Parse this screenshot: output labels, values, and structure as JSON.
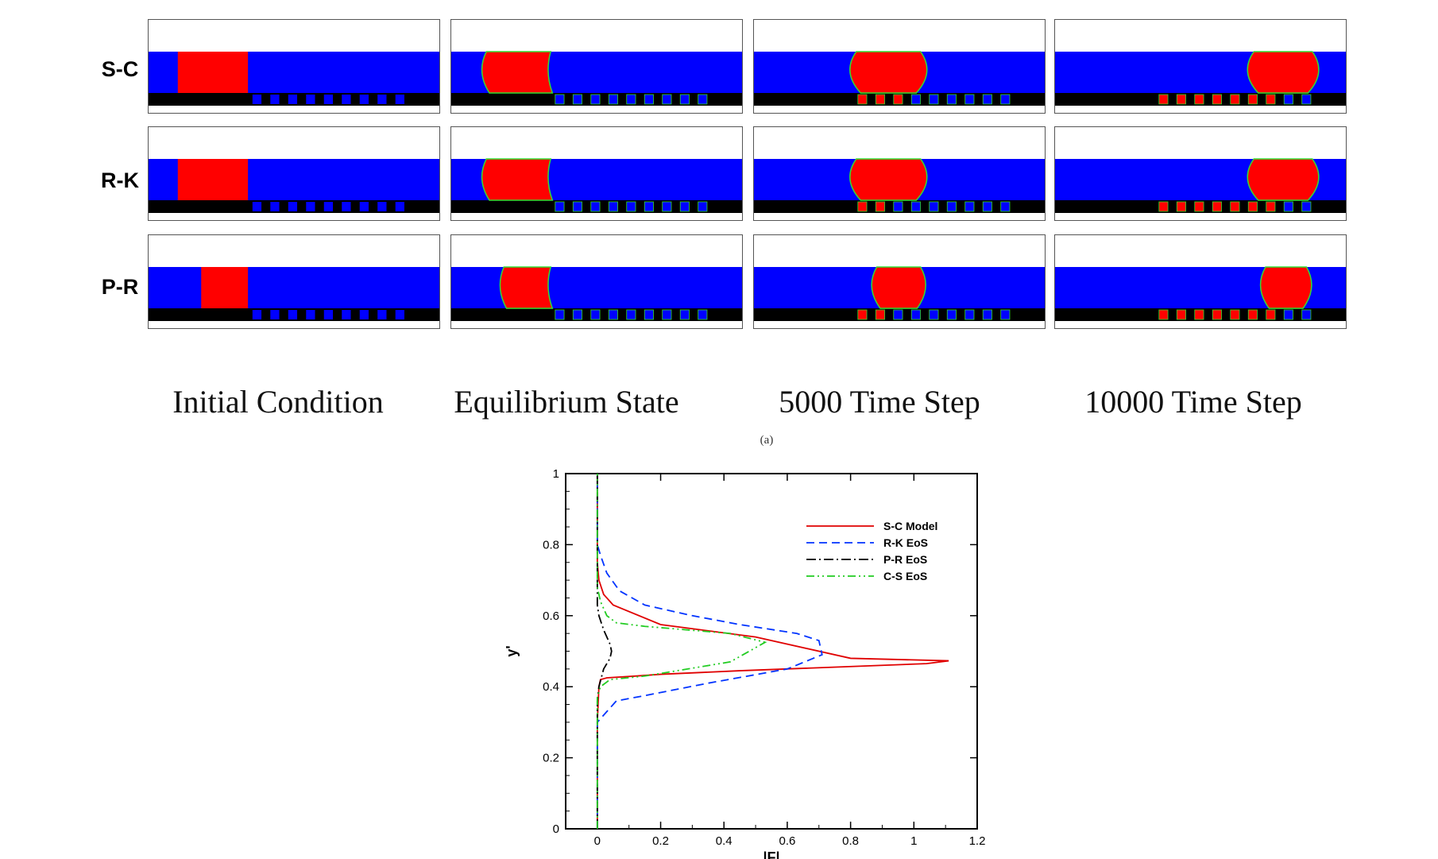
{
  "rows": [
    {
      "label": "S-C"
    },
    {
      "label": "R-K"
    },
    {
      "label": "P-R"
    }
  ],
  "columns": [
    {
      "label": "Initial Condition"
    },
    {
      "label": "Equilibrium State"
    },
    {
      "label": "5000 Time Step"
    },
    {
      "label": "10000 Time Step"
    }
  ],
  "subfigure_label": "(a)",
  "colors": {
    "liquid": "#ff0000",
    "vapor": "#0000ff",
    "wall": "#000000",
    "interface": "#33dd33",
    "sc": "#e00000",
    "rk": "#0033ff",
    "pr": "#000000",
    "cs": "#22cc22"
  },
  "chart_data": {
    "type": "line",
    "xlabel": "|F|",
    "ylabel": "y'",
    "xlim": [
      -0.1,
      1.2
    ],
    "ylim": [
      0,
      1
    ],
    "xticks": [
      0,
      0.2,
      0.4,
      0.6,
      0.8,
      1,
      1.2
    ],
    "yticks": [
      0,
      0.2,
      0.4,
      0.6,
      0.8,
      1
    ],
    "legend_position": "top-right",
    "series": [
      {
        "name": "S-C Model",
        "style": "solid",
        "color": "#e00000",
        "x": [
          0,
          0,
          0.005,
          0.01,
          0.03,
          0.12,
          0.2,
          0.45,
          1.04,
          1.11,
          0.8,
          0.5,
          0.2,
          0.05,
          0.02,
          0.005,
          0,
          0
        ],
        "y": [
          0,
          0.3,
          0.4,
          0.42,
          0.425,
          0.43,
          0.435,
          0.445,
          0.465,
          0.473,
          0.48,
          0.54,
          0.575,
          0.63,
          0.66,
          0.7,
          0.75,
          1
        ]
      },
      {
        "name": "R-K EoS",
        "style": "dashed",
        "color": "#0033ff",
        "x": [
          0,
          0,
          0.01,
          0.03,
          0.06,
          0.15,
          0.35,
          0.6,
          0.71,
          0.7,
          0.63,
          0.45,
          0.3,
          0.15,
          0.07,
          0.03,
          0.01,
          0,
          0
        ],
        "y": [
          0,
          0.3,
          0.31,
          0.33,
          0.36,
          0.375,
          0.41,
          0.45,
          0.49,
          0.53,
          0.55,
          0.575,
          0.6,
          0.63,
          0.67,
          0.72,
          0.77,
          0.8,
          1
        ]
      },
      {
        "name": "P-R EoS",
        "style": "dashdot",
        "color": "#000000",
        "x": [
          0,
          0,
          0.005,
          0.02,
          0.04,
          0.045,
          0.04,
          0.02,
          0.005,
          0,
          0
        ],
        "y": [
          0,
          0.36,
          0.4,
          0.45,
          0.48,
          0.5,
          0.52,
          0.56,
          0.6,
          0.63,
          1
        ]
      },
      {
        "name": "C-S EoS",
        "style": "dashdotdot",
        "color": "#22cc22",
        "x": [
          0,
          0,
          0.01,
          0.04,
          0.15,
          0.42,
          0.53,
          0.42,
          0.15,
          0.06,
          0.03,
          0.01,
          0,
          0
        ],
        "y": [
          0,
          0.37,
          0.4,
          0.42,
          0.43,
          0.47,
          0.525,
          0.55,
          0.57,
          0.58,
          0.6,
          0.64,
          0.68,
          1
        ]
      }
    ]
  }
}
